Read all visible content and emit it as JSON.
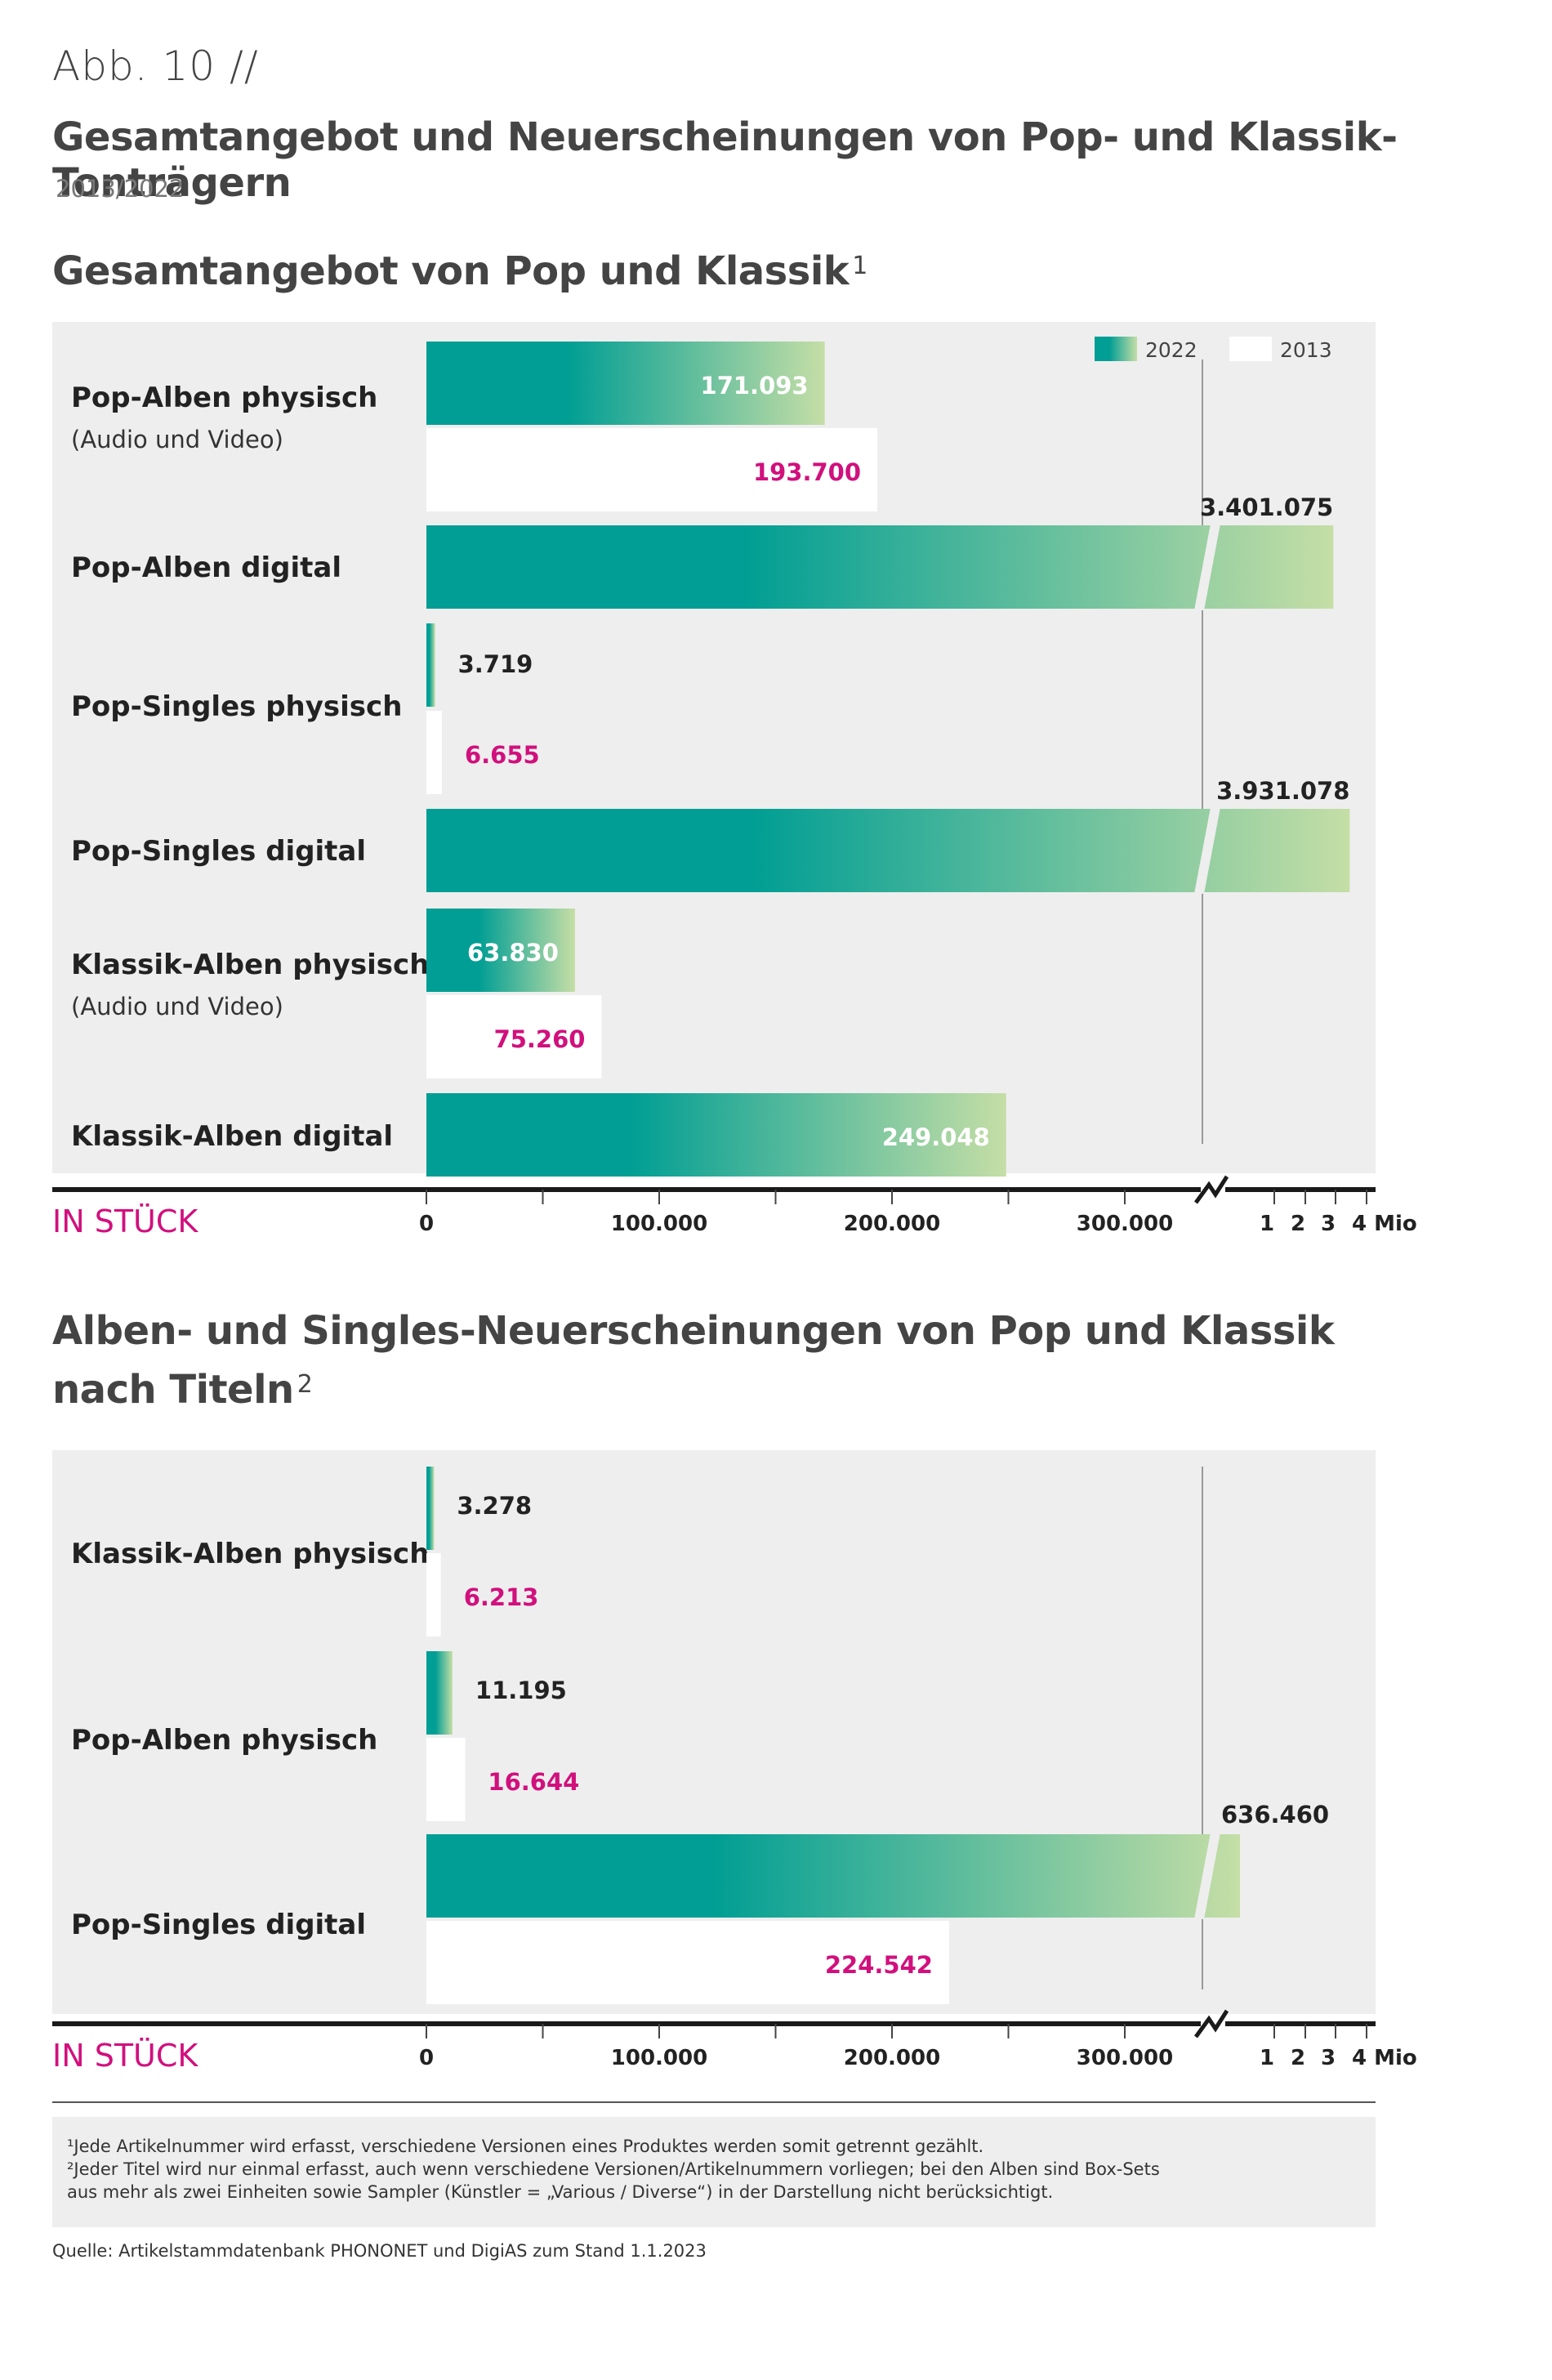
{
  "figure": {
    "number": "Abb. 10 //",
    "title": "Gesamtangebot und Neuerscheinungen von Pop- und Klassik-Tonträgern",
    "subtitle": "2013/2022"
  },
  "legend": {
    "items": [
      {
        "label": "2022"
      },
      {
        "label": "2013"
      }
    ]
  },
  "colors": {
    "teal": "#009e94",
    "light_green": "#c5dea6",
    "magenta": "#d1107d",
    "panel_bg": "#eeeeee",
    "axis": "#1a1a1a"
  },
  "chart_data": [
    {
      "type": "bar",
      "title": "Gesamtangebot von Pop und Klassik",
      "title_footnote": "1",
      "unit_label": "IN STÜCK",
      "x_ticks": [
        "0",
        "100.000",
        "200.000",
        "300.000"
      ],
      "x_log_ticks": [
        "1",
        "2",
        "3",
        "4 Mio"
      ],
      "categories": [
        {
          "label": "Pop-Alben physisch",
          "sublabel": "(Audio und Video)"
        },
        {
          "label": "Pop-Alben digital",
          "sublabel": ""
        },
        {
          "label": "Pop-Singles physisch",
          "sublabel": ""
        },
        {
          "label": "Pop-Singles digital",
          "sublabel": ""
        },
        {
          "label": "Klassik-Alben physisch",
          "sublabel": "(Audio und Video)"
        },
        {
          "label": "Klassik-Alben digital",
          "sublabel": ""
        }
      ],
      "series": [
        {
          "name": "2022",
          "values": [
            171093,
            3401075,
            3719,
            3931078,
            63830,
            249048
          ],
          "labels": [
            "171.093",
            "3.401.075",
            "3.719",
            "3.931.078",
            "63.830",
            "249.048"
          ]
        },
        {
          "name": "2013",
          "values": [
            193700,
            null,
            6655,
            null,
            75260,
            null
          ],
          "labels": [
            "193.700",
            "",
            "6.655",
            "",
            "75.260",
            ""
          ]
        }
      ]
    },
    {
      "type": "bar",
      "title": "Alben- und Singles-Neuerscheinungen von Pop und Klassik nach Titeln",
      "title_footnote": "2",
      "unit_label": "IN STÜCK",
      "x_ticks": [
        "0",
        "100.000",
        "200.000",
        "300.000"
      ],
      "x_log_ticks": [
        "1",
        "2",
        "3",
        "4 Mio"
      ],
      "categories": [
        {
          "label": "Klassik-Alben physisch",
          "sublabel": ""
        },
        {
          "label": "Pop-Alben physisch",
          "sublabel": ""
        },
        {
          "label": "Pop-Singles digital",
          "sublabel": ""
        }
      ],
      "series": [
        {
          "name": "2022",
          "values": [
            3278,
            11195,
            636460
          ],
          "labels": [
            "3.278",
            "11.195",
            "636.460"
          ]
        },
        {
          "name": "2013",
          "values": [
            6213,
            16644,
            224542
          ],
          "labels": [
            "6.213",
            "16.644",
            "224.542"
          ]
        }
      ]
    }
  ],
  "sections": {
    "sec1_title": "Gesamtangebot von Pop und Klassik",
    "sec1_sup": "1",
    "sec2_title_line1": "Alben- und Singles-Neuerscheinungen von Pop und Klassik",
    "sec2_title_line2": "nach Titeln",
    "sec2_sup": "2"
  },
  "footnotes": {
    "fn1": "¹Jede Artikelnummer wird erfasst, verschiedene Versionen eines Produktes werden somit getrennt gezählt.",
    "fn2": "²Jeder Titel wird nur einmal erfasst, auch wenn verschiedene Versionen/Artikelnummern vorliegen; bei den Alben sind Box-Sets",
    "fn3": "  aus mehr als zwei Einheiten sowie Sampler (Künstler = „Various / Diverse“) in der Darstellung nicht berücksichtigt.",
    "source": "Quelle: Artikelstammdatenbank PHONONET und DigiAS zum Stand 1.1.2023"
  }
}
